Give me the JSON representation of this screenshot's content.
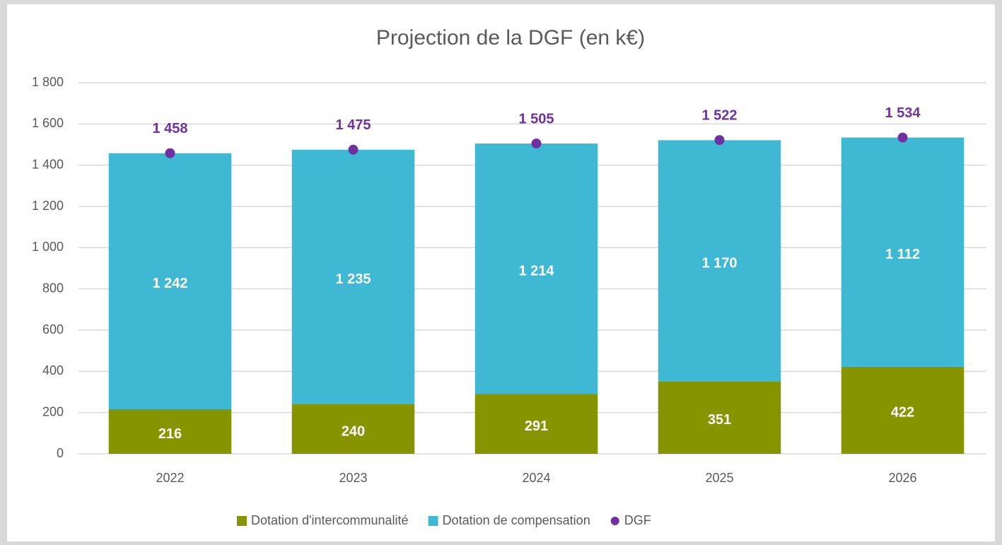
{
  "chart_data": {
    "type": "bar",
    "stacked": true,
    "title": "Projection de la DGF (en k€)",
    "categories": [
      "2022",
      "2023",
      "2024",
      "2025",
      "2026"
    ],
    "series": [
      {
        "name": "Dotation d'intercommunalité",
        "color": "#869400",
        "values": [
          216,
          240,
          291,
          351,
          422
        ]
      },
      {
        "name": "Dotation de compensation",
        "color": "#3fb8d4",
        "values": [
          1242,
          1235,
          1214,
          1170,
          1112
        ],
        "value_labels": [
          "1 242",
          "1 235",
          "1 214",
          "1 170",
          "1 112"
        ]
      },
      {
        "name": "DGF",
        "type": "scatter",
        "color": "#7030a0",
        "values": [
          1458,
          1475,
          1505,
          1522,
          1534
        ],
        "value_labels": [
          "1 458",
          "1 475",
          "1 505",
          "1 522",
          "1 534"
        ]
      }
    ],
    "ylim": [
      0,
      1800
    ],
    "yticks": [
      0,
      200,
      400,
      600,
      800,
      {
        "value": 1000,
        "label": "1 000"
      },
      {
        "value": 1200,
        "label": "1 200"
      },
      {
        "value": 1400,
        "label": "1 400"
      },
      {
        "value": 1600,
        "label": "1 600"
      },
      {
        "value": 1800,
        "label": "1 800"
      }
    ],
    "grid": true,
    "legend": "bottom"
  }
}
